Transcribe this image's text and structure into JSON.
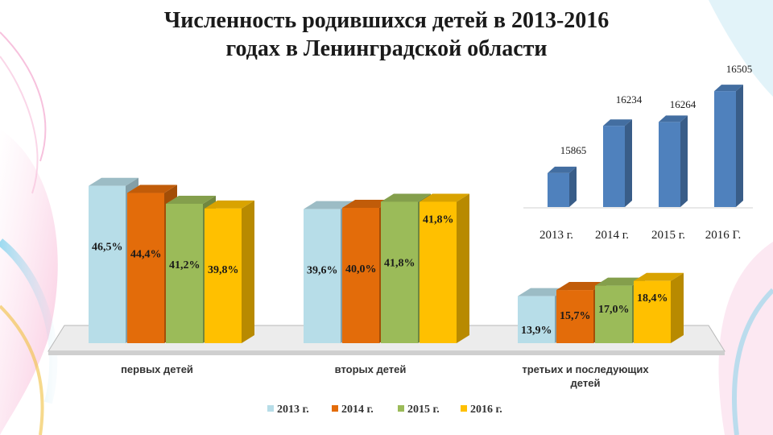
{
  "title": "Численность родившихся детей в 2013-2016 годах в Ленинградской области",
  "title_lines": [
    "Численность родившихся детей в 2013-2016",
    "годах в Ленинградской области"
  ],
  "colors": {
    "2013": "#b7dde8",
    "2014": "#e36c0a",
    "2015": "#9bbb59",
    "2016": "#ffc000",
    "small_bar": "#4f81bd"
  },
  "chart_data": [
    {
      "type": "bar",
      "categories": [
        "первых детей",
        "вторых детей",
        "третьих и последующих детей"
      ],
      "category_lines": [
        [
          "первых детей"
        ],
        [
          "вторых детей"
        ],
        [
          "третьих и последующих",
          "детей"
        ]
      ],
      "series": [
        {
          "name": "2013 г.",
          "values": [
            46.5,
            39.6,
            13.9
          ],
          "labels": [
            "46,5%",
            "39,6%",
            "13,9%"
          ]
        },
        {
          "name": "2014 г.",
          "values": [
            44.4,
            40.0,
            15.7
          ],
          "labels": [
            "44,4%",
            "40,0%",
            "15,7%"
          ]
        },
        {
          "name": "2015 г.",
          "values": [
            41.2,
            41.8,
            17.0
          ],
          "labels": [
            "41,2%",
            "41,8%",
            "17,0%"
          ]
        },
        {
          "name": "2016 г.",
          "values": [
            39.8,
            41.8,
            18.4
          ],
          "labels": [
            "39,8%",
            "41,8%",
            "18,4%"
          ]
        }
      ],
      "legend": "bottom"
    },
    {
      "type": "bar",
      "categories": [
        "2013 г.",
        "2014 г.",
        "2015 г.",
        "2016 Г."
      ],
      "values": [
        15865,
        16234,
        16264,
        16505
      ],
      "labels": [
        "15865",
        "16234",
        "16264",
        "16505"
      ]
    }
  ]
}
